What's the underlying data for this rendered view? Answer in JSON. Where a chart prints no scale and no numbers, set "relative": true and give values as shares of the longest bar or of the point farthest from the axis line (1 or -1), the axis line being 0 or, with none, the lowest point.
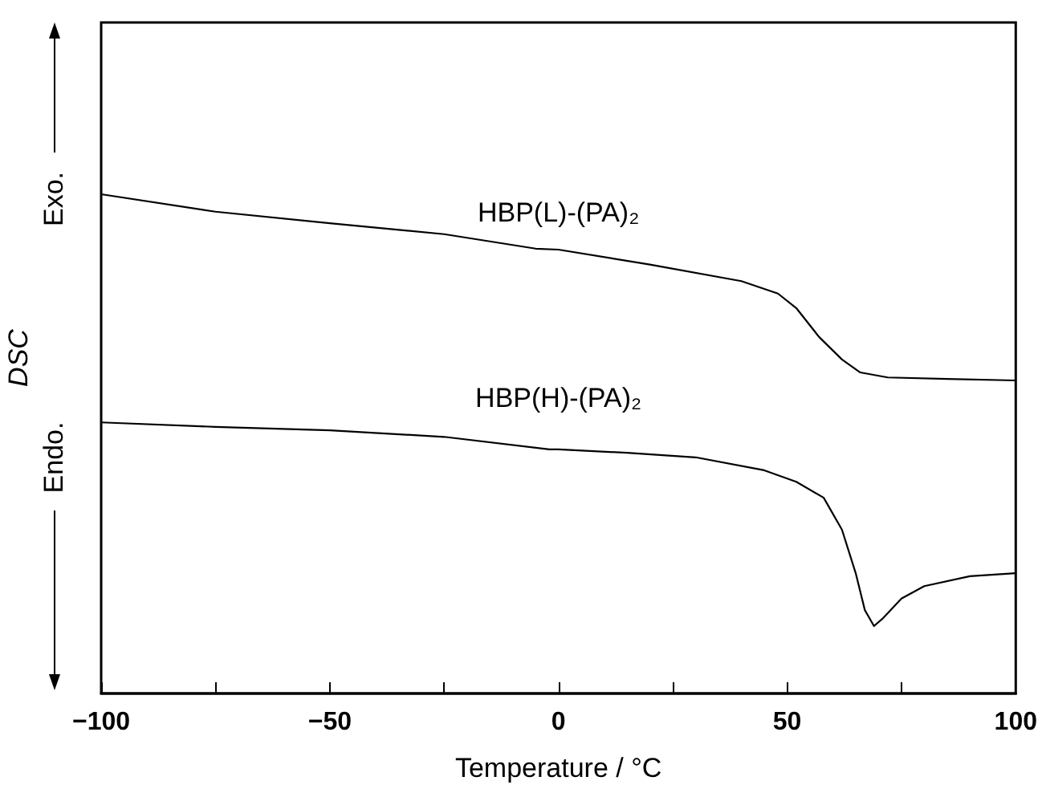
{
  "chart_data": {
    "type": "line",
    "relative": true,
    "xlabel": "Temperature / °C",
    "ylabel": "DSC",
    "xlim": [
      -100,
      100
    ],
    "xticks": [
      -100,
      {
        "value": -75,
        "label": null
      },
      -50,
      {
        "value": -25,
        "label": null
      },
      0,
      {
        "value": 25,
        "label": null
      },
      50,
      {
        "value": 75,
        "label": null
      },
      100
    ],
    "marker": "none",
    "line_style": "solid",
    "grid": false,
    "annotations": [
      "Exo.",
      "Endo."
    ],
    "series": [
      {
        "name": "HBP(L)-(PA)₂",
        "color": "#000000",
        "x": [
          -100,
          -75,
          -50,
          -25,
          -5,
          0,
          20,
          40,
          48,
          52,
          57,
          62,
          66,
          72,
          85,
          100
        ],
        "values": [
          1,
          0.965,
          0.942,
          0.92,
          0.891,
          0.889,
          0.859,
          0.826,
          0.801,
          0.772,
          0.714,
          0.669,
          0.643,
          0.633,
          0.63,
          0.627
        ]
      },
      {
        "name": "HBP(H)-(PA)₂",
        "color": "#000000",
        "x": [
          -100,
          -75,
          -50,
          -25,
          -2,
          0,
          15,
          30,
          45,
          52,
          58,
          62,
          65,
          67,
          69,
          71,
          75,
          80,
          90,
          100
        ],
        "values": [
          0.543,
          0.534,
          0.527,
          0.514,
          0.489,
          0.489,
          0.482,
          0.473,
          0.447,
          0.424,
          0.392,
          0.328,
          0.241,
          0.167,
          0.135,
          0.151,
          0.19,
          0.215,
          0.235,
          0.241
        ]
      }
    ]
  }
}
